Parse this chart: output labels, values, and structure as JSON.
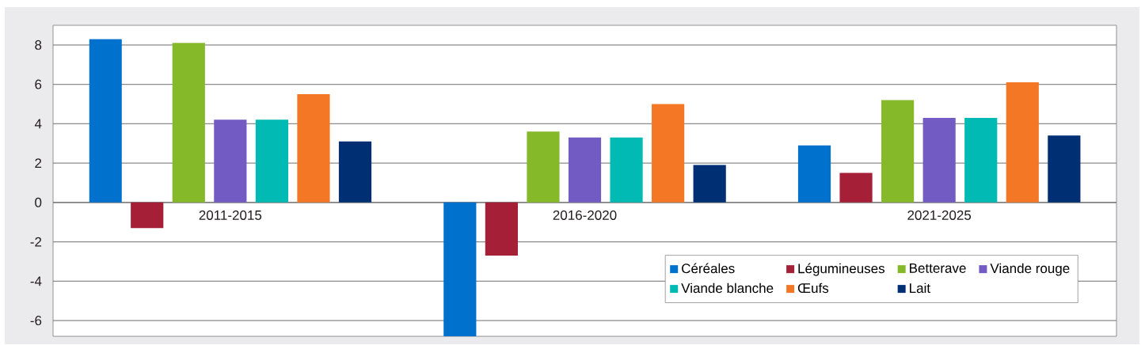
{
  "chart_data": {
    "type": "bar",
    "categories": [
      "2011-2015",
      "2016-2020",
      "2021-2025"
    ],
    "series": [
      {
        "name": "Céréales",
        "color": "#0072ce",
        "values": [
          8.3,
          -6.8,
          2.9
        ]
      },
      {
        "name": "Légumineuses",
        "color": "#a51f36",
        "values": [
          -1.3,
          -2.7,
          1.5
        ]
      },
      {
        "name": "Betterave",
        "color": "#86b92a",
        "values": [
          8.1,
          3.6,
          5.2
        ]
      },
      {
        "name": "Viande rouge",
        "color": "#735bc4",
        "values": [
          4.2,
          3.3,
          4.3
        ]
      },
      {
        "name": "Viande blanche",
        "color": "#00bab3",
        "values": [
          4.2,
          3.3,
          4.3
        ]
      },
      {
        "name": "Œufs",
        "color": "#f47725",
        "values": [
          5.5,
          5.0,
          6.1
        ]
      },
      {
        "name": "Lait",
        "color": "#003073",
        "values": [
          3.1,
          1.9,
          3.4
        ]
      }
    ],
    "ylim": [
      -6.8,
      9
    ],
    "yticks": [
      -6,
      -4,
      -2,
      0,
      2,
      4,
      6,
      8
    ],
    "grid": "y",
    "legend": "bottom right"
  }
}
